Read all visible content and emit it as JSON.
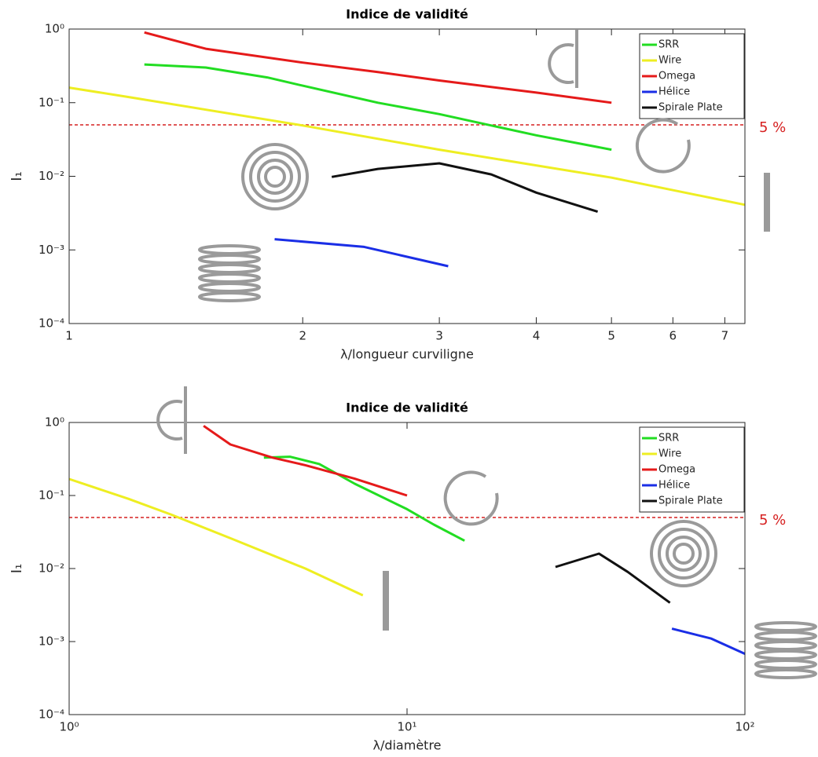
{
  "chart_data": [
    {
      "type": "line",
      "title": "Indice de validité",
      "xlabel": "λ/longueur curviligne",
      "ylabel": "I₁",
      "log_x": true,
      "log_y": true,
      "grid": false,
      "legend": "upper right",
      "xlim": [
        1,
        7.43
      ],
      "ylim": [
        0.0001,
        1
      ],
      "xticks": [
        1,
        2,
        3,
        4,
        5,
        6,
        7
      ],
      "yticks": [
        {
          "value": 0.0001,
          "label": "10⁻⁴"
        },
        {
          "value": 0.001,
          "label": "10⁻³"
        },
        {
          "value": 0.01,
          "label": "10⁻²"
        },
        {
          "value": 0.1,
          "label": "10⁻¹"
        },
        {
          "value": 1,
          "label": "10⁰"
        }
      ],
      "threshold": {
        "value": 0.05,
        "label": "5 %",
        "color": "#d62020"
      },
      "series": [
        {
          "name": "SRR",
          "color": "#22dd22",
          "x": [
            1.25,
            1.5,
            1.8,
            2,
            2.5,
            3,
            3.5,
            4,
            5
          ],
          "values": [
            0.33,
            0.3,
            0.22,
            0.17,
            0.1,
            0.07,
            0.049,
            0.036,
            0.023
          ]
        },
        {
          "name": "Wire",
          "color": "#eeee22",
          "x": [
            1,
            1.2,
            2,
            3,
            5,
            7.43
          ],
          "values": [
            0.16,
            0.118,
            0.049,
            0.023,
            0.0096,
            0.0041
          ]
        },
        {
          "name": "Omega",
          "color": "#e51a1a",
          "x": [
            1.25,
            1.5,
            2,
            2.5,
            3,
            4,
            5
          ],
          "values": [
            0.9,
            0.54,
            0.35,
            0.26,
            0.2,
            0.137,
            0.1
          ]
        },
        {
          "name": "Hélice",
          "color": "#1a2ee6",
          "x": [
            1.84,
            2.4,
            3.08
          ],
          "values": [
            0.0014,
            0.0011,
            0.0006
          ]
        },
        {
          "name": "Spirale Plate",
          "color": "#111111",
          "x": [
            2.18,
            2.5,
            3,
            3.5,
            4,
            4.8
          ],
          "values": [
            0.0098,
            0.0126,
            0.015,
            0.0106,
            0.006,
            0.0033
          ]
        }
      ]
    },
    {
      "type": "line",
      "title": "Indice de validité",
      "xlabel": "λ/diamètre",
      "ylabel": "I₁",
      "log_x": true,
      "log_y": true,
      "grid": false,
      "legend": "upper right",
      "xlim": [
        1,
        100
      ],
      "ylim": [
        0.0001,
        1
      ],
      "xticks": [
        {
          "value": 1,
          "label": "10⁰"
        },
        {
          "value": 10,
          "label": "10¹"
        },
        {
          "value": 100,
          "label": "10²"
        }
      ],
      "yticks": [
        {
          "value": 0.0001,
          "label": "10⁻⁴"
        },
        {
          "value": 0.001,
          "label": "10⁻³"
        },
        {
          "value": 0.01,
          "label": "10⁻²"
        },
        {
          "value": 0.1,
          "label": "10⁻¹"
        },
        {
          "value": 1,
          "label": "10⁰"
        }
      ],
      "threshold": {
        "value": 0.05,
        "label": "5 %",
        "color": "#d62020"
      },
      "series": [
        {
          "name": "SRR",
          "color": "#22dd22",
          "x": [
            3.77,
            4.5,
            5.5,
            7,
            10,
            12,
            14.8
          ],
          "values": [
            0.33,
            0.34,
            0.27,
            0.145,
            0.065,
            0.04,
            0.024
          ]
        },
        {
          "name": "Wire",
          "color": "#eeee22",
          "x": [
            1,
            1.5,
            2,
            3,
            5,
            7.4
          ],
          "values": [
            0.168,
            0.09,
            0.055,
            0.026,
            0.01,
            0.0043
          ]
        },
        {
          "name": "Omega",
          "color": "#e51a1a",
          "x": [
            2.5,
            3,
            4,
            5,
            7,
            10
          ],
          "values": [
            0.9,
            0.5,
            0.33,
            0.26,
            0.17,
            0.1
          ]
        },
        {
          "name": "Hélice",
          "color": "#1a2ee6",
          "x": [
            60.8,
            79.5,
            100
          ],
          "values": [
            0.0015,
            0.0011,
            0.00068
          ]
        },
        {
          "name": "Spirale Plate",
          "color": "#111111",
          "x": [
            27.5,
            37,
            45,
            60
          ],
          "values": [
            0.0105,
            0.016,
            0.009,
            0.0034
          ]
        }
      ]
    }
  ]
}
